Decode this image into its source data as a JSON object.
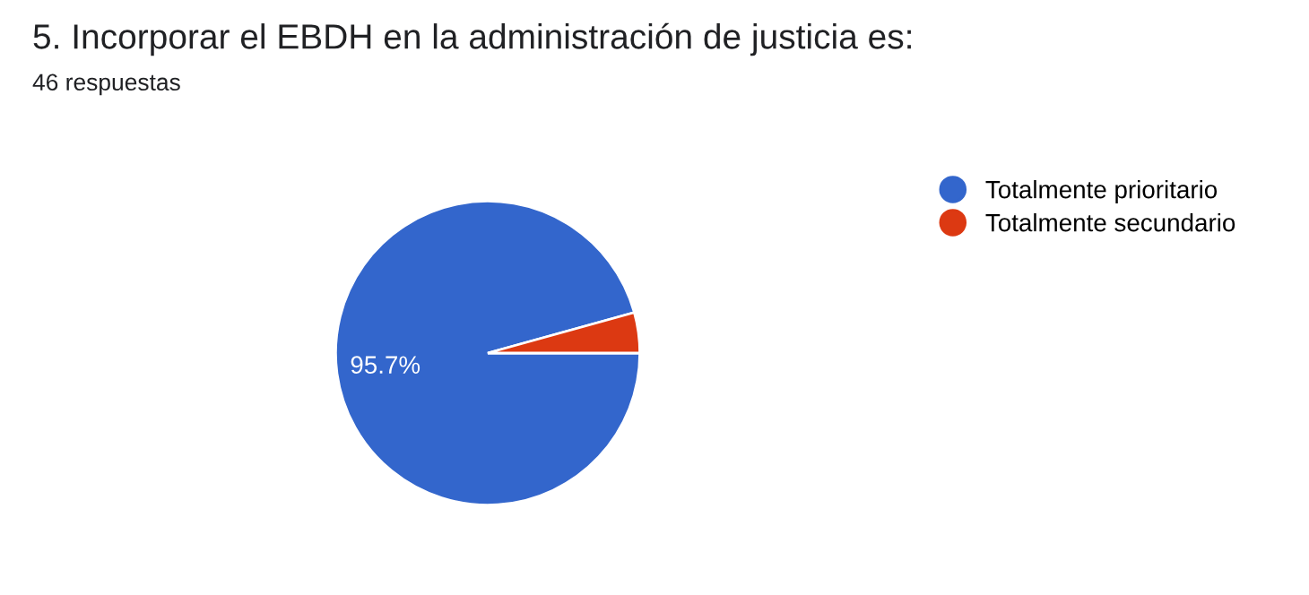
{
  "chart_data": {
    "type": "pie",
    "title": "5. Incorporar el EBDH en la administración de justicia es:",
    "subtitle": "46 respuestas",
    "categories": [
      "Totalmente prioritario",
      "Totalmente secundario"
    ],
    "values": [
      95.7,
      4.3
    ],
    "colors": [
      "#3366cc",
      "#dc3912"
    ],
    "value_labels": [
      "95.7%",
      null
    ],
    "legend": "right"
  }
}
